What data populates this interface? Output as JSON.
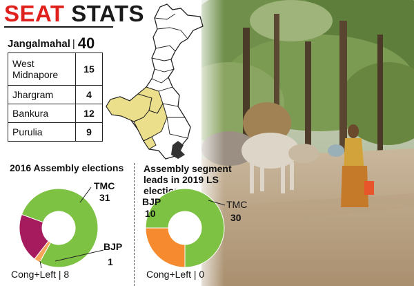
{
  "title": {
    "part1": "SEAT",
    "part2": "STATS"
  },
  "region": {
    "name": "Jangalmahal",
    "separator": "|",
    "total": "40"
  },
  "districts": [
    {
      "name": "West Midnapore",
      "seats": "15"
    },
    {
      "name": "Jhargram",
      "seats": "4"
    },
    {
      "name": "Bankura",
      "seats": "12"
    },
    {
      "name": "Purulia",
      "seats": "9"
    }
  ],
  "chart_data": [
    {
      "type": "pie",
      "title": "2016 Assembly elections",
      "categories": [
        "TMC",
        "BJP",
        "Cong+Left"
      ],
      "values": [
        31,
        1,
        8
      ],
      "colors": [
        "#7dc242",
        "#f5a65b",
        "#a61a5e"
      ],
      "labels": {
        "tmc_name": "TMC",
        "tmc_value": "31",
        "bjp_name": "BJP",
        "bjp_value": "1",
        "cong_text": "Cong+Left | 8"
      }
    },
    {
      "type": "pie",
      "title": "Assembly segment leads in 2019 LS elections",
      "categories": [
        "TMC",
        "BJP",
        "Cong+Left"
      ],
      "values": [
        30,
        10,
        0
      ],
      "colors": [
        "#7dc242",
        "#f58a2e",
        "#a61a5e"
      ],
      "labels": {
        "tmc_name": "TMC",
        "tmc_value": "30",
        "bjp_name": "BJP",
        "bjp_value": "10",
        "cong_text": "Cong+Left | 0"
      }
    }
  ],
  "map": {
    "highlight_color": "#ecdf8c",
    "outline_color": "#222222"
  },
  "photo": {
    "description_icon": "rural-road-cows-woman-photo"
  }
}
